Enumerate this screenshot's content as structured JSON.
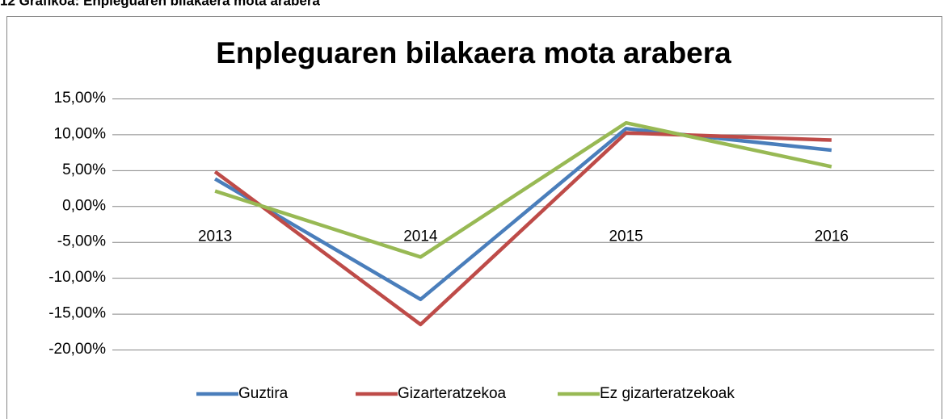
{
  "caption": "12 Grafikoa: Enpleguaren bilakaera mota arabera",
  "chart_data": {
    "type": "line",
    "title": "Enpleguaren bilakaera mota arabera",
    "categories": [
      "2013",
      "2014",
      "2015",
      "2016"
    ],
    "series": [
      {
        "name": "Guztira",
        "color": "#4a7ebb",
        "values": [
          3.8,
          -13.0,
          10.8,
          7.8
        ]
      },
      {
        "name": "Gizarteratzekoa",
        "color": "#be4b48",
        "values": [
          4.8,
          -16.5,
          10.2,
          9.2
        ]
      },
      {
        "name": "Ez gizarteratzekoak",
        "color": "#98b954",
        "values": [
          2.1,
          -7.1,
          11.6,
          5.5
        ]
      }
    ],
    "ylim": [
      -20,
      15
    ],
    "yticks": [
      {
        "value": -20,
        "label": "-20,00%"
      },
      {
        "value": -15,
        "label": "-15,00%"
      },
      {
        "value": -10,
        "label": "-10,00%"
      },
      {
        "value": -5,
        "label": "-5,00%"
      },
      {
        "value": 0,
        "label": "0,00%"
      },
      {
        "value": 5,
        "label": "5,00%"
      },
      {
        "value": 10,
        "label": "10,00%"
      },
      {
        "value": 15,
        "label": "15,00%"
      }
    ],
    "grid": true,
    "legend": "bottom"
  }
}
